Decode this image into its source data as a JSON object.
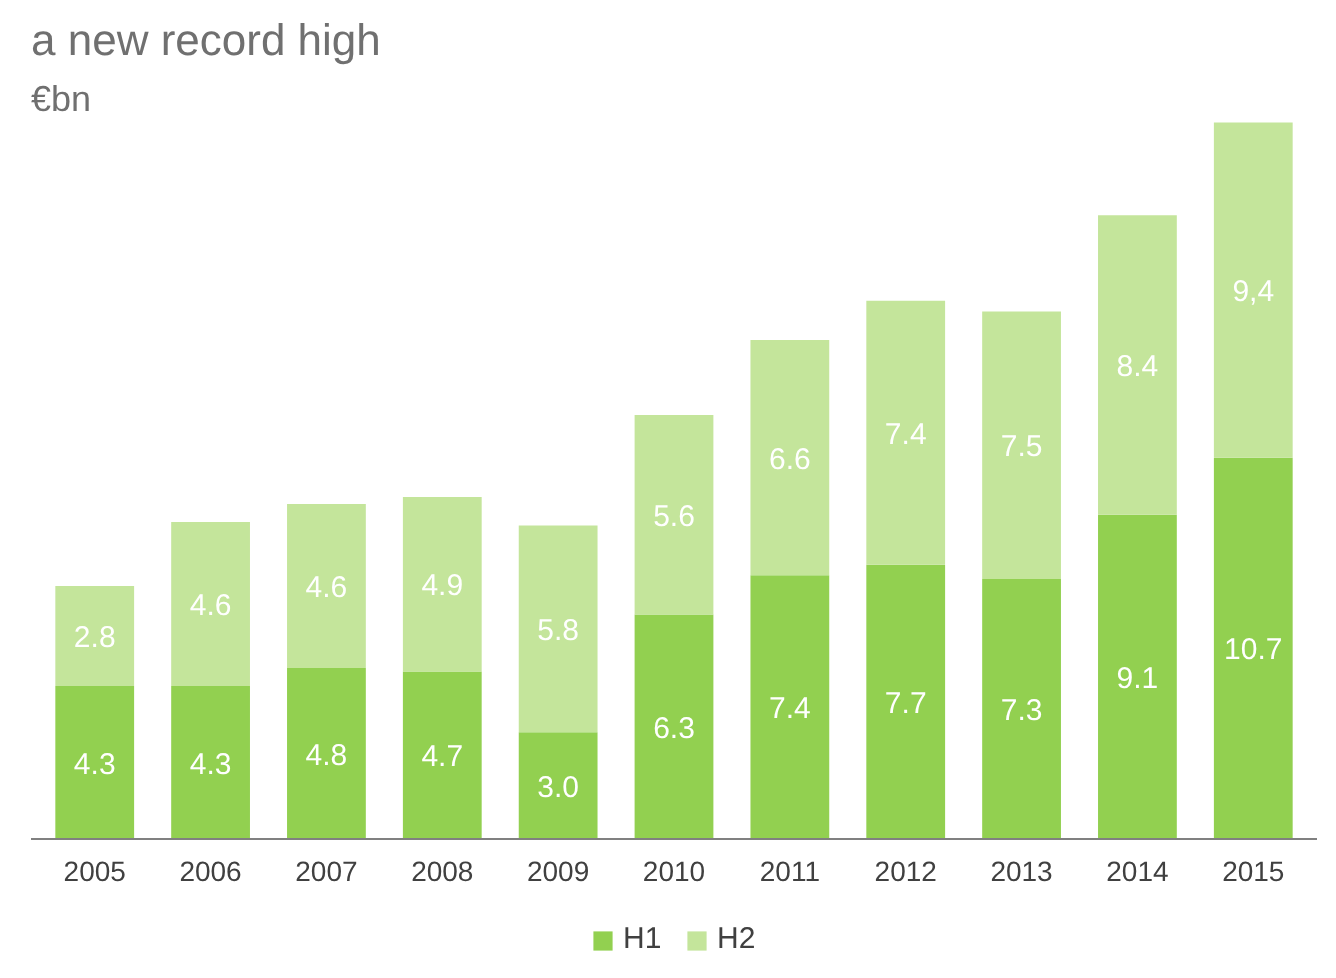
{
  "chart_data": {
    "type": "bar",
    "stacked": true,
    "title": "a new record high",
    "subtitle": "€bn",
    "categories": [
      "2005",
      "2006",
      "2007",
      "2008",
      "2009",
      "2010",
      "2011",
      "2012",
      "2013",
      "2014",
      "2015"
    ],
    "series": [
      {
        "name": "H1",
        "color": "#92d050",
        "values": [
          4.3,
          4.3,
          4.8,
          4.7,
          3.0,
          6.3,
          7.4,
          7.7,
          7.3,
          9.1,
          10.7
        ],
        "value_labels": [
          "4.3",
          "4.3",
          "4.8",
          "4.7",
          "3.0",
          "6.3",
          "7.4",
          "7.7",
          "7.3",
          "9.1",
          "10.7"
        ]
      },
      {
        "name": "H2",
        "color": "#c4e59b",
        "values": [
          2.8,
          4.6,
          4.6,
          4.9,
          5.8,
          5.6,
          6.6,
          7.4,
          7.5,
          8.4,
          9.4
        ],
        "value_labels": [
          "2.8",
          "4.6",
          "4.6",
          "4.9",
          "5.8",
          "5.6",
          "6.6",
          "7.4",
          "7.5",
          "8.4",
          "9,4"
        ]
      }
    ],
    "legend": "bottom",
    "grid": false
  }
}
